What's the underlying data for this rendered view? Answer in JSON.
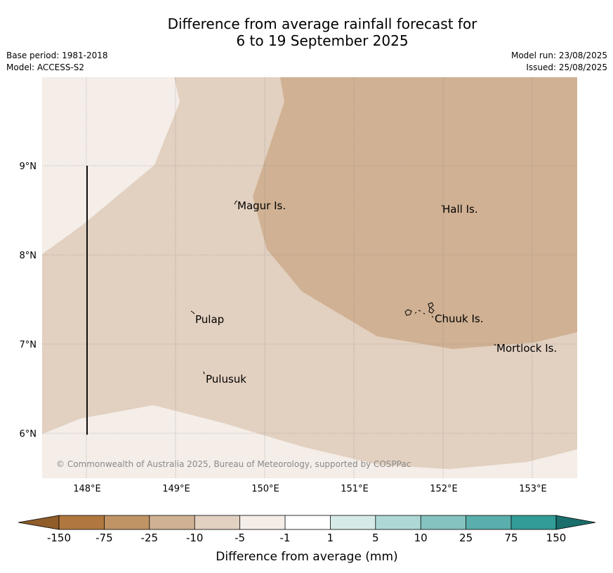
{
  "title_line1": "Difference from average rainfall forecast for",
  "title_line2": "6 to 19 September 2025",
  "meta_left": [
    "Base period: 1981-2018",
    "Model: ACCESS-S2"
  ],
  "meta_right": [
    "Model run: 23/08/2025",
    "Issued: 25/08/2025"
  ],
  "map": {
    "lat_labels": [
      "9°N",
      "8°N",
      "7°N",
      "6°N"
    ],
    "lon_labels": [
      "148°E",
      "149°E",
      "150°E",
      "151°E",
      "152°E",
      "153°E"
    ],
    "places": [
      "Magur Is.",
      "Hall Is.",
      "Pulap",
      "Chuuk Is.",
      "Mortlock Is.",
      "Pulusuk"
    ],
    "copyright": "© Commonwealth of Australia 2025, Bureau of Meteorology, supported by COSPPac"
  },
  "legend": {
    "title": "Difference from average (mm)",
    "ticks": [
      "-150",
      "-75",
      "-25",
      "-10",
      "-5",
      "-1",
      "1",
      "5",
      "10",
      "25",
      "75",
      "150"
    ],
    "colors": {
      "lt_-150": "#8f5c2a",
      "-150_-75": "#b07840",
      "-75_-25": "#c19466",
      "-25_-10": "#d0b193",
      "-10_-5": "#e2d0c0",
      "-5_-1": "#f4ede8",
      "-1_1": "#ffffff",
      "1_5": "#d6ebe8",
      "5_10": "#aed8d5",
      "10_25": "#84c3c0",
      "25_75": "#5aaeab",
      "75_150": "#329c98",
      "gt_150": "#1a6e6b"
    }
  }
}
